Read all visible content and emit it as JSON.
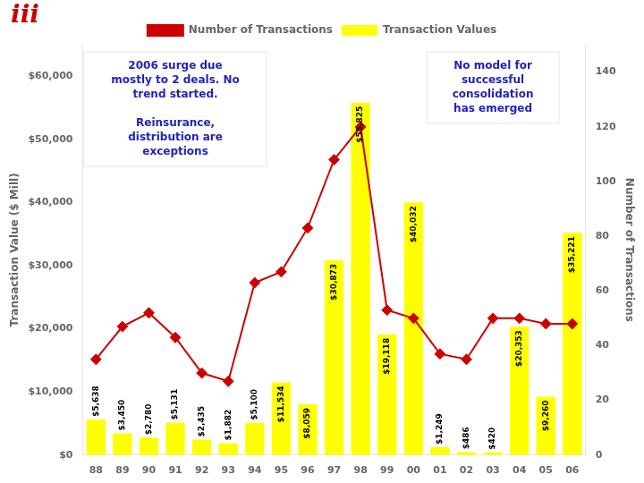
{
  "chart_data": {
    "type": "bar",
    "categories": [
      "88",
      "89",
      "90",
      "91",
      "92",
      "93",
      "94",
      "95",
      "96",
      "97",
      "98",
      "99",
      "00",
      "01",
      "02",
      "03",
      "04",
      "05",
      "06"
    ],
    "series": [
      {
        "name": "Transaction Values",
        "type": "bar",
        "color": "#ffff00",
        "values": [
          5638,
          3450,
          2780,
          5131,
          2435,
          1882,
          5100,
          11534,
          8059,
          30873,
          55825,
          19118,
          40032,
          1249,
          486,
          420,
          20353,
          9260,
          35221
        ],
        "value_labels": [
          "$5,638",
          "$3,450",
          "$2,780",
          "$5,131",
          "$2,435",
          "$1,882",
          "$5,100",
          "$11,534",
          "$8,059",
          "$30,873",
          "$55,825",
          "$19,118",
          "$40,032",
          "$1,249",
          "$486",
          "$420",
          "$20,353",
          "$9,260",
          "$35,221"
        ],
        "data_labels": true
      },
      {
        "name": "Number of Transactions",
        "type": "line",
        "color": "#cc0000",
        "marker": "diamond",
        "axis": "y2",
        "values": [
          35,
          47,
          52,
          43,
          30,
          27,
          63,
          67,
          83,
          108,
          120,
          53,
          50,
          37,
          35,
          50,
          50,
          48,
          48
        ]
      }
    ],
    "ylabel": "Transaction Value ($ Mill)",
    "y2label": "Number of Transactions",
    "ylim": [
      0,
      65000
    ],
    "yticks": [
      {
        "value": 0,
        "label": "$0"
      },
      {
        "value": 10000,
        "label": "$10,000"
      },
      {
        "value": 20000,
        "label": "$20,000"
      },
      {
        "value": 30000,
        "label": "$30,000"
      },
      {
        "value": 40000,
        "label": "$40,000"
      },
      {
        "value": 50000,
        "label": "$50,000"
      },
      {
        "value": 60000,
        "label": "$60,000"
      }
    ],
    "y2lim": [
      0,
      150
    ],
    "y2ticks": [
      0,
      20,
      40,
      60,
      80,
      100,
      120,
      140
    ],
    "grid": false,
    "legend": "top",
    "annotations": [
      {
        "paragraphs": [
          [
            "2006 surge due",
            "mostly to 2 deals. No",
            "trend started."
          ],
          [
            "Reinsurance,",
            "distribution are",
            "exceptions"
          ]
        ],
        "color": "#2222bb"
      },
      {
        "paragraphs": [
          [
            "No model for",
            "successful",
            "consolidation",
            "has emerged"
          ]
        ],
        "color": "#2222bb"
      },
      {
        "paragraphs": [
          [
            "iii"
          ]
        ],
        "color": "#cc0000"
      }
    ]
  }
}
